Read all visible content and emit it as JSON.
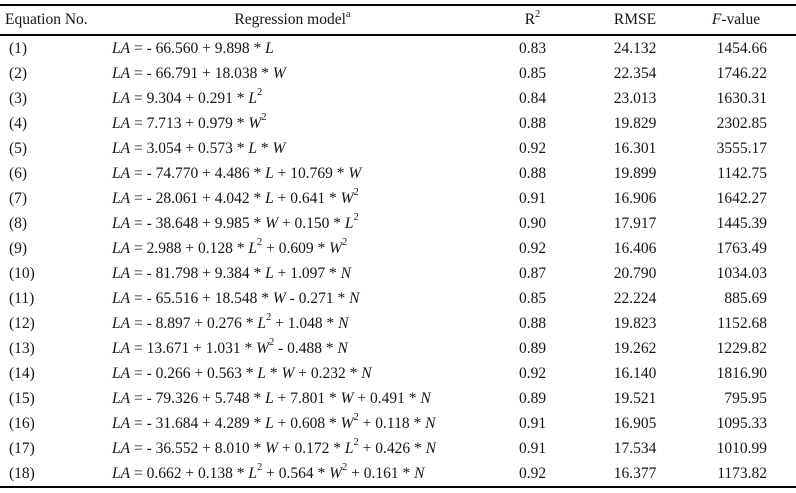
{
  "table": {
    "columns": [
      {
        "label": "Equation No."
      },
      {
        "label": "Regression model^a"
      },
      {
        "label": "R^2"
      },
      {
        "label": "RMSE"
      },
      {
        "label": "F-value"
      }
    ],
    "rows": [
      {
        "no": "(1)",
        "model": "LA = - 66.560 + 9.898 * L",
        "r2": "0.83",
        "rmse": "24.132",
        "f": "1454.66"
      },
      {
        "no": "(2)",
        "model": "LA = - 66.791 + 18.038 * W",
        "r2": "0.85",
        "rmse": "22.354",
        "f": "1746.22"
      },
      {
        "no": "(3)",
        "model": "LA = 9.304 + 0.291 * L^2",
        "r2": "0.84",
        "rmse": "23.013",
        "f": "1630.31"
      },
      {
        "no": "(4)",
        "model": "LA = 7.713 + 0.979 * W^2",
        "r2": "0.88",
        "rmse": "19.829",
        "f": "2302.85"
      },
      {
        "no": "(5)",
        "model": "LA = 3.054 + 0.573 * L * W",
        "r2": "0.92",
        "rmse": "16.301",
        "f": "3555.17"
      },
      {
        "no": "(6)",
        "model": "LA = - 74.770 + 4.486 * L + 10.769 * W",
        "r2": "0.88",
        "rmse": "19.899",
        "f": "1142.75"
      },
      {
        "no": "(7)",
        "model": "LA = - 28.061 + 4.042 * L + 0.641 * W^2",
        "r2": "0.91",
        "rmse": "16.906",
        "f": "1642.27"
      },
      {
        "no": "(8)",
        "model": "LA = - 38.648 + 9.985 * W + 0.150 * L^2",
        "r2": "0.90",
        "rmse": "17.917",
        "f": "1445.39"
      },
      {
        "no": "(9)",
        "model": "LA = 2.988 + 0.128 * L^2 + 0.609 * W^2",
        "r2": "0.92",
        "rmse": "16.406",
        "f": "1763.49"
      },
      {
        "no": "(10)",
        "model": "LA = - 81.798 + 9.384 * L + 1.097 * N",
        "r2": "0.87",
        "rmse": "20.790",
        "f": "1034.03"
      },
      {
        "no": "(11)",
        "model": "LA = - 65.516 + 18.548 * W - 0.271 * N",
        "r2": "0.85",
        "rmse": "22.224",
        "f": "885.69"
      },
      {
        "no": "(12)",
        "model": "LA = - 8.897 + 0.276 * L^2 + 1.048 * N",
        "r2": "0.88",
        "rmse": "19.823",
        "f": "1152.68"
      },
      {
        "no": "(13)",
        "model": "LA = 13.671 + 1.031 * W^2 - 0.488 * N",
        "r2": "0.89",
        "rmse": "19.262",
        "f": "1229.82"
      },
      {
        "no": "(14)",
        "model": "LA = - 0.266 + 0.563 * L * W + 0.232 * N",
        "r2": "0.92",
        "rmse": "16.140",
        "f": "1816.90"
      },
      {
        "no": "(15)",
        "model": "LA = - 79.326 + 5.748 * L + 7.801 * W + 0.491 * N",
        "r2": "0.89",
        "rmse": "19.521",
        "f": "795.95"
      },
      {
        "no": "(16)",
        "model": "LA = - 31.684 + 4.289 * L + 0.608 * W^2 + 0.118 * N",
        "r2": "0.91",
        "rmse": "16.905",
        "f": "1095.33"
      },
      {
        "no": "(17)",
        "model": "LA = - 36.552 + 8.010 * W + 0.172 * L^2 + 0.426 * N",
        "r2": "0.91",
        "rmse": "17.534",
        "f": "1010.99"
      },
      {
        "no": "(18)",
        "model": "LA = 0.662 + 0.138 * L^2 + 0.564 * W^2 + 0.161 * N",
        "r2": "0.92",
        "rmse": "16.377",
        "f": "1173.82"
      }
    ]
  }
}
